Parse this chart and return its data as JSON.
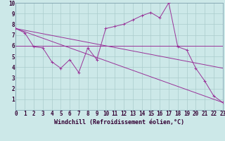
{
  "bg_color": "#cce8e8",
  "grid_color": "#aacccc",
  "line_color": "#993399",
  "xlabel": "Windchill (Refroidissement éolien,°C)",
  "xlim": [
    0,
    23
  ],
  "ylim": [
    0,
    10
  ],
  "series": [
    {
      "x": [
        0,
        1,
        2,
        3,
        4,
        5,
        6,
        7,
        8,
        9,
        10,
        11,
        12,
        13,
        14,
        15,
        16,
        17,
        18,
        19,
        20,
        21,
        22,
        23
      ],
      "y": [
        7.6,
        7.2,
        5.9,
        5.8,
        4.5,
        3.9,
        4.7,
        3.5,
        5.8,
        4.7,
        7.6,
        7.8,
        8.0,
        8.4,
        8.8,
        9.1,
        8.6,
        10.0,
        5.9,
        5.6,
        3.9,
        2.7,
        1.3,
        0.7
      ],
      "marker": true
    },
    {
      "x": [
        0,
        23
      ],
      "y": [
        7.6,
        0.7
      ],
      "marker": false
    },
    {
      "x": [
        0,
        23
      ],
      "y": [
        7.6,
        3.9
      ],
      "marker": false
    },
    {
      "x": [
        0,
        23
      ],
      "y": [
        6.0,
        6.0
      ],
      "marker": false
    }
  ],
  "xticks": [
    0,
    1,
    2,
    3,
    4,
    5,
    6,
    7,
    8,
    9,
    10,
    11,
    12,
    13,
    14,
    15,
    16,
    17,
    18,
    19,
    20,
    21,
    22,
    23
  ],
  "yticks": [
    1,
    2,
    3,
    4,
    5,
    6,
    7,
    8,
    9,
    10
  ],
  "tick_fontsize": 5.5,
  "xlabel_fontsize": 6.0
}
